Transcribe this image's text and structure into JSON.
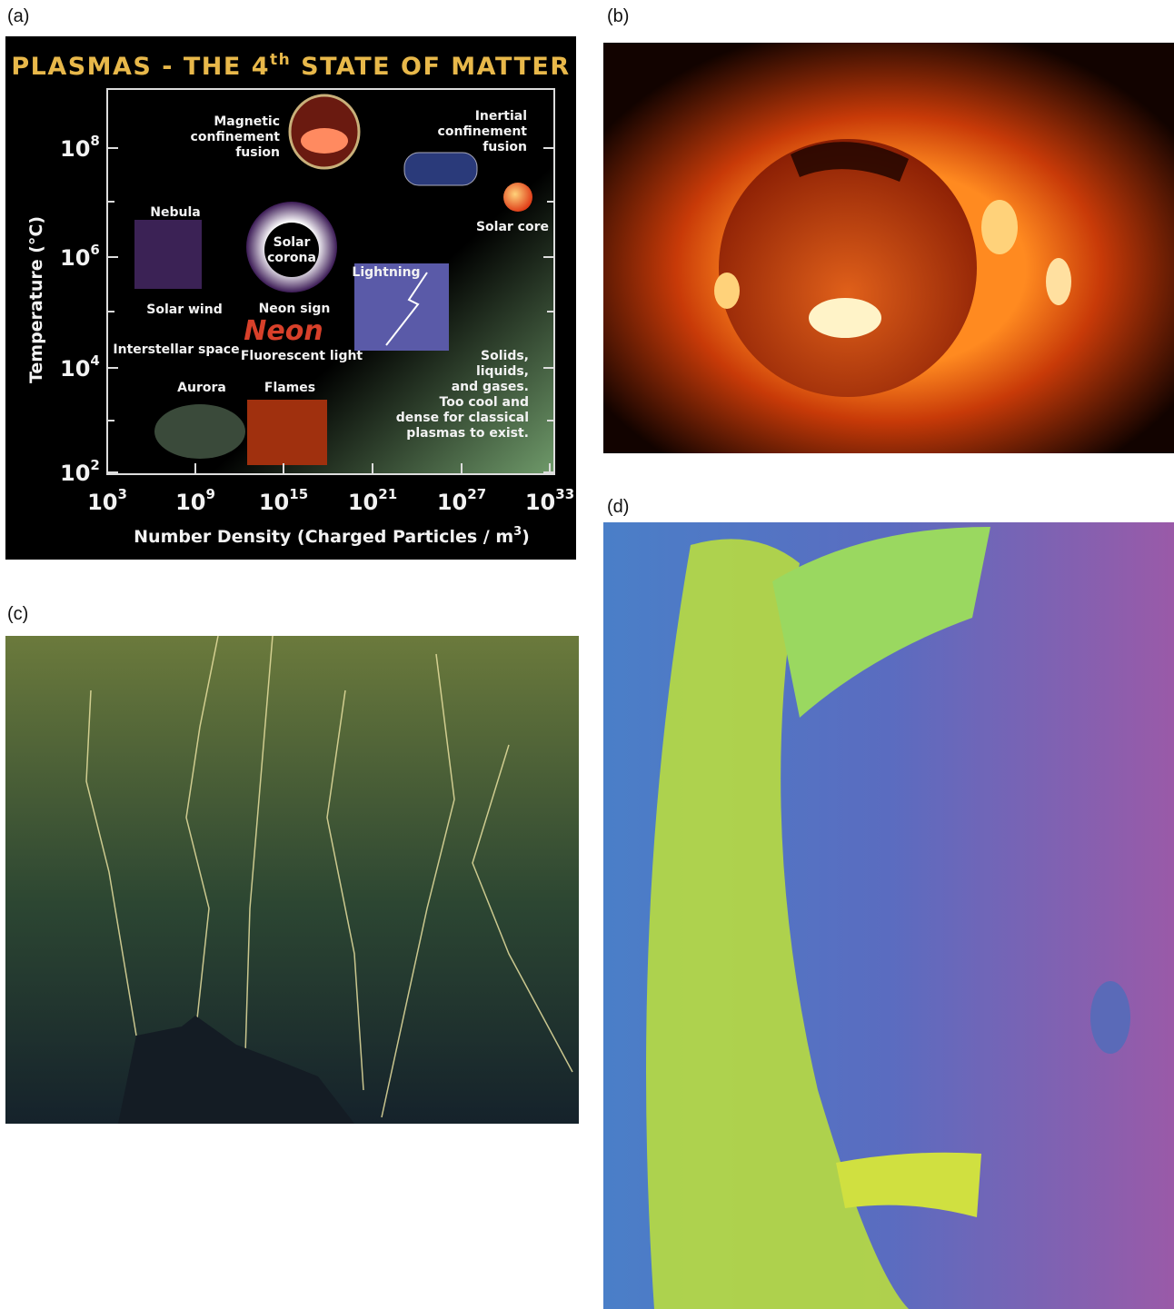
{
  "panels": {
    "a": {
      "label": "(a)",
      "title": {
        "main": "PLASMAS - THE 4",
        "sup": "th",
        "rest": " STATE OF MATTER"
      },
      "y_axis": {
        "label": "Temperature (°C)",
        "ticks": [
          {
            "base": "10",
            "exp": "8"
          },
          {
            "base": "10",
            "exp": "6"
          },
          {
            "base": "10",
            "exp": "4"
          },
          {
            "base": "10",
            "exp": "2"
          }
        ]
      },
      "x_axis": {
        "label": "Number Density (Charged Particles / m",
        "sup": "3",
        "end": ")",
        "ticks": [
          {
            "base": "10",
            "exp": "3"
          },
          {
            "base": "10",
            "exp": "9"
          },
          {
            "base": "10",
            "exp": "15"
          },
          {
            "base": "10",
            "exp": "21"
          },
          {
            "base": "10",
            "exp": "27"
          },
          {
            "base": "10",
            "exp": "33"
          }
        ]
      },
      "regions": [
        {
          "lines": [
            "Magnetic",
            "confinement",
            "fusion"
          ]
        },
        {
          "lines": [
            "Inertial",
            "confinement",
            "fusion"
          ]
        },
        {
          "lines": [
            "Solar core"
          ]
        },
        {
          "lines": [
            "Nebula"
          ]
        },
        {
          "lines": [
            "Solar",
            "corona"
          ]
        },
        {
          "lines": [
            "Lightning"
          ]
        },
        {
          "lines": [
            "Solar wind"
          ]
        },
        {
          "lines": [
            "Neon sign"
          ]
        },
        {
          "lines": [
            "Neon"
          ]
        },
        {
          "lines": [
            "Interstellar space"
          ]
        },
        {
          "lines": [
            "Fluorescent light"
          ]
        },
        {
          "lines": [
            "Aurora"
          ]
        },
        {
          "lines": [
            "Flames"
          ]
        },
        {
          "lines": [
            "Solids,",
            "liquids,",
            "and gases.",
            "Too cool and",
            "dense for classical",
            "plasmas to exist."
          ]
        }
      ]
    },
    "b": {
      "label": "(b)"
    },
    "c": {
      "label": "(c)"
    },
    "d": {
      "label": "(d)"
    }
  }
}
